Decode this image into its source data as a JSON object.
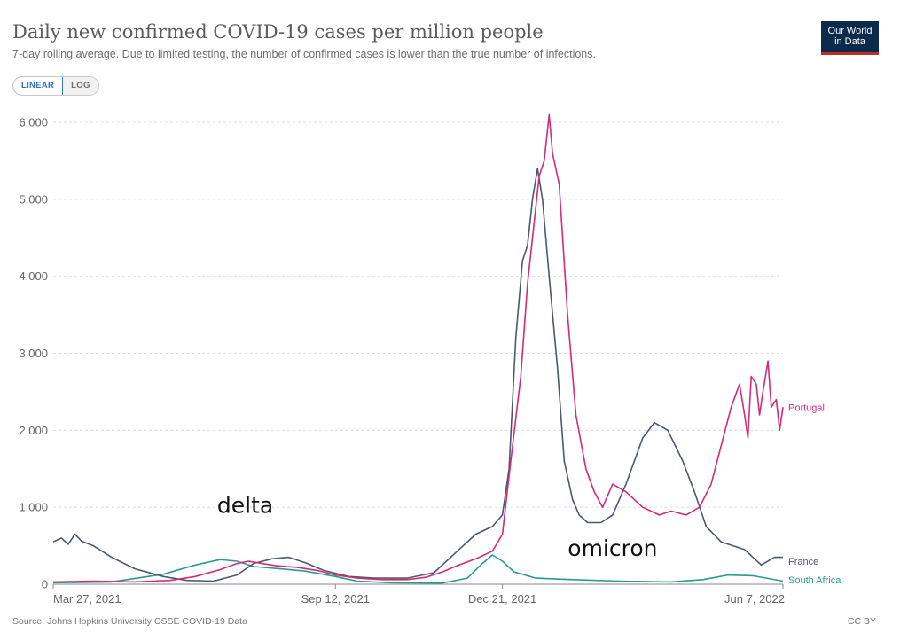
{
  "header": {
    "title": "Daily new confirmed COVID-19 cases per million people",
    "subtitle": "7-day rolling average. Due to limited testing, the number of confirmed cases is lower than the true number of infections.",
    "logo_line1": "Our World",
    "logo_line2": "in Data"
  },
  "controls": {
    "linear_label": "LINEAR",
    "log_label": "LOG",
    "selected": "LINEAR"
  },
  "footer": {
    "source": "Source: Johns Hopkins University CSSE COVID-19 Data",
    "license": "CC BY"
  },
  "colors": {
    "Portugal": "#d42b73",
    "France": "#4a5870",
    "South Africa": "#2a9a8e",
    "grid": "#dcdcdc",
    "axis": "#8a8a8a"
  },
  "chart_data": {
    "type": "line",
    "title": "Daily new confirmed COVID-19 cases per million people",
    "subtitle": "7-day rolling average. Due to limited testing, the number of confirmed cases is lower than the true number of infections.",
    "x_start": "2021-03-27",
    "x_end": "2022-06-07",
    "x_ticks": [
      "Mar 27, 2021",
      "Sep 12, 2021",
      "Dec 21, 2021",
      "Jun 7, 2022"
    ],
    "x_tick_dates": [
      "2021-03-27",
      "2021-09-12",
      "2021-12-21",
      "2022-06-07"
    ],
    "y_ticks": [
      0,
      1000,
      2000,
      3000,
      4000,
      5000,
      6000
    ],
    "y_tick_labels": [
      "0",
      "1,000",
      "2,000",
      "3,000",
      "4,000",
      "5,000",
      "6,000"
    ],
    "ylim": [
      0,
      6300
    ],
    "grid": "horizontal dashed",
    "legend": "labels at line ends (right)",
    "annotations": [
      {
        "text": "delta",
        "x": "2021-07-20",
        "y": 930
      },
      {
        "text": "omicron",
        "x": "2022-02-25",
        "y": 370
      }
    ],
    "series": [
      {
        "name": "Portugal",
        "label_y": 2300,
        "points": [
          [
            "2021-03-27",
            30
          ],
          [
            "2021-04-20",
            40
          ],
          [
            "2021-05-15",
            30
          ],
          [
            "2021-06-05",
            50
          ],
          [
            "2021-06-20",
            100
          ],
          [
            "2021-07-05",
            190
          ],
          [
            "2021-07-15",
            270
          ],
          [
            "2021-07-22",
            300
          ],
          [
            "2021-07-30",
            270
          ],
          [
            "2021-08-08",
            240
          ],
          [
            "2021-08-20",
            220
          ],
          [
            "2021-09-01",
            180
          ],
          [
            "2021-09-12",
            120
          ],
          [
            "2021-09-25",
            80
          ],
          [
            "2021-10-10",
            60
          ],
          [
            "2021-10-25",
            60
          ],
          [
            "2021-11-05",
            90
          ],
          [
            "2021-11-15",
            160
          ],
          [
            "2021-11-25",
            250
          ],
          [
            "2021-12-05",
            330
          ],
          [
            "2021-12-15",
            430
          ],
          [
            "2021-12-21",
            650
          ],
          [
            "2021-12-26",
            1600
          ],
          [
            "2022-01-01",
            2700
          ],
          [
            "2022-01-05",
            3900
          ],
          [
            "2022-01-09",
            4700
          ],
          [
            "2022-01-12",
            5300
          ],
          [
            "2022-01-15",
            5500
          ],
          [
            "2022-01-18",
            6100
          ],
          [
            "2022-01-20",
            5600
          ],
          [
            "2022-01-24",
            5200
          ],
          [
            "2022-01-29",
            3500
          ],
          [
            "2022-02-03",
            2200
          ],
          [
            "2022-02-09",
            1500
          ],
          [
            "2022-02-14",
            1200
          ],
          [
            "2022-02-19",
            1000
          ],
          [
            "2022-02-25",
            1300
          ],
          [
            "2022-03-05",
            1200
          ],
          [
            "2022-03-15",
            1000
          ],
          [
            "2022-03-25",
            900
          ],
          [
            "2022-04-01",
            950
          ],
          [
            "2022-04-10",
            900
          ],
          [
            "2022-04-18",
            1000
          ],
          [
            "2022-04-25",
            1300
          ],
          [
            "2022-05-01",
            1800
          ],
          [
            "2022-05-07",
            2300
          ],
          [
            "2022-05-12",
            2600
          ],
          [
            "2022-05-15",
            2200
          ],
          [
            "2022-05-17",
            1900
          ],
          [
            "2022-05-19",
            2700
          ],
          [
            "2022-05-22",
            2600
          ],
          [
            "2022-05-24",
            2200
          ],
          [
            "2022-05-26",
            2500
          ],
          [
            "2022-05-29",
            2900
          ],
          [
            "2022-05-31",
            2300
          ],
          [
            "2022-06-03",
            2400
          ],
          [
            "2022-06-05",
            2000
          ],
          [
            "2022-06-07",
            2300
          ]
        ]
      },
      {
        "name": "France",
        "label_y": 300,
        "points": [
          [
            "2021-03-27",
            550
          ],
          [
            "2021-04-01",
            600
          ],
          [
            "2021-04-05",
            520
          ],
          [
            "2021-04-09",
            650
          ],
          [
            "2021-04-13",
            560
          ],
          [
            "2021-04-20",
            500
          ],
          [
            "2021-05-01",
            350
          ],
          [
            "2021-05-15",
            200
          ],
          [
            "2021-06-01",
            100
          ],
          [
            "2021-06-15",
            50
          ],
          [
            "2021-07-01",
            40
          ],
          [
            "2021-07-15",
            120
          ],
          [
            "2021-07-25",
            270
          ],
          [
            "2021-08-05",
            330
          ],
          [
            "2021-08-15",
            350
          ],
          [
            "2021-08-25",
            280
          ],
          [
            "2021-09-05",
            180
          ],
          [
            "2021-09-20",
            100
          ],
          [
            "2021-10-05",
            80
          ],
          [
            "2021-10-25",
            80
          ],
          [
            "2021-11-10",
            150
          ],
          [
            "2021-11-25",
            450
          ],
          [
            "2021-12-05",
            650
          ],
          [
            "2021-12-15",
            750
          ],
          [
            "2021-12-21",
            900
          ],
          [
            "2021-12-25",
            1500
          ],
          [
            "2021-12-29",
            3200
          ],
          [
            "2022-01-02",
            4200
          ],
          [
            "2022-01-05",
            4400
          ],
          [
            "2022-01-08",
            5000
          ],
          [
            "2022-01-11",
            5400
          ],
          [
            "2022-01-14",
            5000
          ],
          [
            "2022-01-18",
            4000
          ],
          [
            "2022-01-23",
            2800
          ],
          [
            "2022-01-27",
            1600
          ],
          [
            "2022-02-01",
            1100
          ],
          [
            "2022-02-05",
            900
          ],
          [
            "2022-02-10",
            800
          ],
          [
            "2022-02-18",
            800
          ],
          [
            "2022-02-25",
            900
          ],
          [
            "2022-03-05",
            1300
          ],
          [
            "2022-03-15",
            1900
          ],
          [
            "2022-03-22",
            2100
          ],
          [
            "2022-03-30",
            2000
          ],
          [
            "2022-04-08",
            1600
          ],
          [
            "2022-04-15",
            1200
          ],
          [
            "2022-04-22",
            750
          ],
          [
            "2022-05-01",
            550
          ],
          [
            "2022-05-15",
            450
          ],
          [
            "2022-05-25",
            250
          ],
          [
            "2022-06-02",
            350
          ],
          [
            "2022-06-07",
            350
          ]
        ]
      },
      {
        "name": "South Africa",
        "label_y": 60,
        "points": [
          [
            "2021-03-27",
            20
          ],
          [
            "2021-05-01",
            30
          ],
          [
            "2021-06-01",
            130
          ],
          [
            "2021-06-20",
            250
          ],
          [
            "2021-07-05",
            320
          ],
          [
            "2021-07-15",
            300
          ],
          [
            "2021-07-25",
            230
          ],
          [
            "2021-08-10",
            200
          ],
          [
            "2021-08-25",
            170
          ],
          [
            "2021-09-12",
            100
          ],
          [
            "2021-09-25",
            40
          ],
          [
            "2021-10-15",
            20
          ],
          [
            "2021-11-15",
            15
          ],
          [
            "2021-11-30",
            80
          ],
          [
            "2021-12-08",
            250
          ],
          [
            "2021-12-15",
            380
          ],
          [
            "2021-12-21",
            300
          ],
          [
            "2021-12-28",
            160
          ],
          [
            "2022-01-10",
            80
          ],
          [
            "2022-02-01",
            60
          ],
          [
            "2022-03-01",
            40
          ],
          [
            "2022-04-01",
            30
          ],
          [
            "2022-04-20",
            60
          ],
          [
            "2022-05-05",
            120
          ],
          [
            "2022-05-20",
            110
          ],
          [
            "2022-06-07",
            40
          ]
        ]
      }
    ]
  }
}
